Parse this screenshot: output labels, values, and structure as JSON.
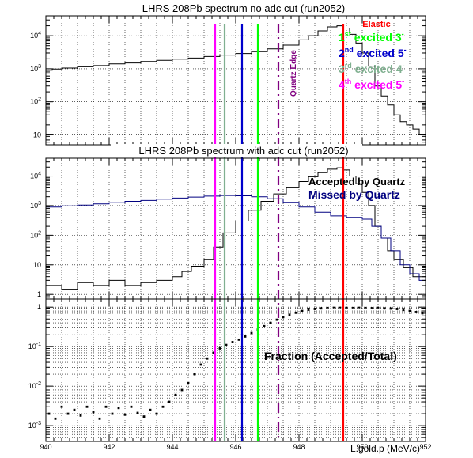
{
  "figure": {
    "xaxis": {
      "label": "L.gold.p (MeV/c)",
      "range": [
        940,
        952
      ],
      "major_ticks": [
        940,
        942,
        944,
        946,
        948,
        950,
        952
      ],
      "tick_labels": [
        "940",
        "942",
        "944",
        "946",
        "948",
        "950",
        "952"
      ]
    }
  },
  "chart_data": [
    {
      "type": "line",
      "panel": "top",
      "title": "LHRS 208Pb spectrum no adc cut (run2052)",
      "yscale": "log",
      "ylim": [
        5,
        40000
      ],
      "yticks": [
        {
          "value": 10,
          "base": "10",
          "exp": ""
        },
        {
          "value": 100,
          "base": "10",
          "exp": "2"
        },
        {
          "value": 1000,
          "base": "10",
          "exp": "3"
        },
        {
          "value": 10000,
          "base": "10",
          "exp": "4"
        }
      ],
      "grid": true,
      "series": [
        {
          "color": "#000000",
          "x": [
            940.0,
            940.2,
            940.5,
            941.0,
            941.5,
            942.0,
            942.5,
            943.0,
            943.5,
            944.0,
            944.5,
            945.0,
            945.5,
            946.0,
            946.5,
            947.0,
            947.5,
            948.0,
            948.3,
            948.6,
            948.9,
            949.2,
            949.4,
            949.6,
            949.8,
            950.0,
            950.2,
            950.4,
            950.6,
            950.8,
            951.0,
            951.2,
            951.4,
            951.6,
            951.8,
            952.0
          ],
          "y": [
            900,
            980,
            1050,
            1150,
            1250,
            1400,
            1500,
            1650,
            1800,
            1950,
            2100,
            2350,
            2600,
            2900,
            3300,
            4000,
            5200,
            7500,
            10000,
            14000,
            18500,
            20000,
            17000,
            11000,
            6000,
            3000,
            1200,
            300,
            150,
            80,
            40,
            25,
            20,
            15,
            10,
            8
          ]
        }
      ]
    },
    {
      "type": "line",
      "panel": "middle",
      "title": "LHRS 208Pb spectrum with adc cut (run2052)",
      "yscale": "log",
      "ylim": [
        0.7,
        40000
      ],
      "yticks": [
        {
          "value": 1,
          "base": "1",
          "exp": ""
        },
        {
          "value": 10,
          "base": "10",
          "exp": ""
        },
        {
          "value": 100,
          "base": "10",
          "exp": "2"
        },
        {
          "value": 1000,
          "base": "10",
          "exp": "3"
        },
        {
          "value": 10000,
          "base": "10",
          "exp": "4"
        }
      ],
      "grid": true,
      "legend": [
        {
          "label": "Accepted by Quartz",
          "color": "#000000"
        },
        {
          "label": "Missed by Quartz",
          "color": "#000080"
        }
      ],
      "series": [
        {
          "name": "Accepted by Quartz",
          "color": "#000000",
          "x": [
            940.0,
            940.5,
            941.0,
            941.5,
            942.0,
            942.5,
            943.0,
            943.5,
            944.0,
            944.3,
            944.6,
            945.0,
            945.3,
            945.6,
            946.0,
            946.4,
            946.8,
            947.2,
            947.6,
            948.0,
            948.3,
            948.6,
            948.9,
            949.2,
            949.4,
            949.6,
            949.8,
            950.0,
            950.2,
            950.4,
            950.6,
            950.8,
            951.0,
            951.3,
            951.6,
            952.0
          ],
          "y": [
            2,
            1.5,
            2.5,
            2,
            3,
            2,
            2.5,
            3,
            4,
            6,
            9,
            15,
            40,
            120,
            300,
            700,
            1400,
            2500,
            4000,
            6500,
            9500,
            13000,
            17000,
            19000,
            16000,
            10000,
            5500,
            2800,
            1000,
            200,
            80,
            30,
            15,
            8,
            4,
            3
          ]
        },
        {
          "name": "Missed by Quartz",
          "color": "#000080",
          "x": [
            940.0,
            940.5,
            941.0,
            941.5,
            942.0,
            942.5,
            943.0,
            943.5,
            944.0,
            944.5,
            945.0,
            945.5,
            946.0,
            946.5,
            947.0,
            947.5,
            948.0,
            948.5,
            949.0,
            949.5,
            950.0,
            950.3,
            950.6,
            950.9,
            951.2,
            951.5,
            951.8,
            952.0
          ],
          "y": [
            900,
            980,
            1050,
            1150,
            1250,
            1400,
            1500,
            1650,
            1800,
            1950,
            2100,
            2200,
            2150,
            2000,
            1700,
            1300,
            900,
            600,
            450,
            400,
            350,
            200,
            80,
            30,
            10,
            5,
            3,
            2
          ]
        }
      ]
    },
    {
      "type": "scatter",
      "panel": "bottom",
      "annotation": "Fraction (Accepted/Total)",
      "yscale": "log",
      "ylim": [
        0.0004,
        1.6
      ],
      "yticks": [
        {
          "value": 0.001,
          "base": "10",
          "exp": "-3"
        },
        {
          "value": 0.01,
          "base": "10",
          "exp": "-2"
        },
        {
          "value": 0.1,
          "base": "10",
          "exp": "-1"
        },
        {
          "value": 1,
          "base": "1",
          "exp": ""
        }
      ],
      "grid": true,
      "series": [
        {
          "color": "#000000",
          "x": [
            940.1,
            940.3,
            940.5,
            940.7,
            940.9,
            941.1,
            941.3,
            941.5,
            941.7,
            941.9,
            942.1,
            942.3,
            942.5,
            942.7,
            942.9,
            943.1,
            943.3,
            943.5,
            943.7,
            943.9,
            944.1,
            944.3,
            944.5,
            944.7,
            944.9,
            945.1,
            945.3,
            945.5,
            945.7,
            945.9,
            946.1,
            946.3,
            946.5,
            946.7,
            946.9,
            947.1,
            947.3,
            947.5,
            947.7,
            947.9,
            948.1,
            948.3,
            948.5,
            948.7,
            948.9,
            949.1,
            949.3,
            949.5,
            949.7,
            949.9,
            950.1,
            950.3,
            950.5,
            950.7,
            950.9,
            951.1,
            951.3,
            951.5,
            951.7,
            951.9
          ],
          "y": [
            0.002,
            0.0015,
            0.003,
            0.002,
            0.0025,
            0.0018,
            0.003,
            0.0022,
            0.0015,
            0.003,
            0.002,
            0.0028,
            0.0019,
            0.003,
            0.0021,
            0.0017,
            0.0025,
            0.002,
            0.003,
            0.004,
            0.006,
            0.008,
            0.012,
            0.02,
            0.035,
            0.05,
            0.07,
            0.09,
            0.11,
            0.13,
            0.15,
            0.18,
            0.22,
            0.27,
            0.33,
            0.4,
            0.48,
            0.56,
            0.64,
            0.72,
            0.8,
            0.86,
            0.9,
            0.93,
            0.95,
            0.96,
            0.96,
            0.95,
            0.95,
            0.96,
            0.95,
            0.94,
            0.95,
            0.93,
            0.92,
            0.9,
            0.85,
            0.8,
            0.75,
            0.7
          ]
        }
      ]
    }
  ],
  "markers": [
    {
      "label": "Elastic",
      "x": 949.4,
      "color": "#ff0000",
      "style": "solid"
    },
    {
      "label": "Quartz Edge",
      "x": 947.35,
      "color": "#800080",
      "style": "dashdot"
    },
    {
      "label": "1st excited 3-",
      "x": 946.7,
      "color": "#00ff00",
      "style": "solid",
      "ord": "1",
      "sup": "st",
      "text": " excited 3",
      "tail": "-"
    },
    {
      "label": "2nd excited 5-",
      "x": 946.2,
      "color": "#0000cc",
      "style": "solid",
      "ord": "2",
      "sup": "nd",
      "text": " excited 5",
      "tail": "-"
    },
    {
      "label": "3rd excited 4-",
      "x": 945.65,
      "color": "#80b090",
      "style": "solid",
      "ord": "3",
      "sup": "rd",
      "text": " excited 4",
      "tail": "-"
    },
    {
      "label": "4th excited 5-",
      "x": 945.35,
      "color": "#ff00ff",
      "style": "solid",
      "ord": "4",
      "sup": "th",
      "text": " excited 5",
      "tail": "-"
    }
  ]
}
